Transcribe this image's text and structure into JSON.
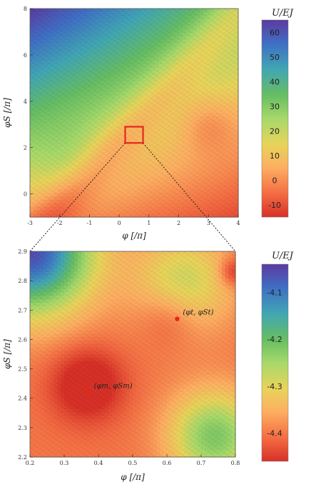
{
  "chart_data": [
    {
      "type": "heatmap",
      "xlabel": "φ [/π]",
      "ylabel": "φS [/π]",
      "xlim": [
        -3,
        4
      ],
      "ylim": [
        -1,
        8
      ],
      "x_ticks": [
        "-3",
        "-2",
        "-1",
        "0",
        "1",
        "2",
        "3",
        "4"
      ],
      "y_ticks": [
        "0",
        "2",
        "4",
        "6",
        "8"
      ],
      "x_tick_values": [
        -3,
        -2,
        -1,
        0,
        1,
        2,
        3,
        4
      ],
      "y_tick_values": [
        0,
        2,
        4,
        6,
        8
      ],
      "colorbar": {
        "title": "U/EJ",
        "ticks": [
          "60",
          "50",
          "40",
          "30",
          "20",
          "10",
          "0",
          "-10"
        ],
        "tick_values": [
          60,
          50,
          40,
          30,
          20,
          10,
          0,
          -10
        ],
        "range": [
          -15,
          65
        ]
      },
      "zoom_box": {
        "x": [
          0.2,
          0.8
        ],
        "y": [
          2.2,
          2.9
        ],
        "color": "#e8261c"
      },
      "corner_values": {
        "top_left": 65,
        "top_right": 30,
        "bottom_left": 5,
        "bottom_right": -10,
        "center": 5
      }
    },
    {
      "type": "heatmap",
      "xlabel": "φ [/π]",
      "ylabel": "φS [/π]",
      "xlim": [
        0.2,
        0.8
      ],
      "ylim": [
        2.2,
        2.9
      ],
      "x_ticks": [
        "0.2",
        "0.3",
        "0.4",
        "0.5",
        "0.6",
        "0.7",
        "0.8"
      ],
      "y_ticks": [
        "2.2",
        "2.3",
        "2.4",
        "2.5",
        "2.6",
        "2.7",
        "2.8",
        "2.9"
      ],
      "x_tick_values": [
        0.2,
        0.3,
        0.4,
        0.5,
        0.6,
        0.7,
        0.8
      ],
      "y_tick_values": [
        2.2,
        2.3,
        2.4,
        2.5,
        2.6,
        2.7,
        2.8,
        2.9
      ],
      "colorbar": {
        "title": "U/EJ",
        "ticks": [
          "-4.1",
          "-4.2",
          "-4.3",
          "-4.4"
        ],
        "tick_values": [
          -4.1,
          -4.2,
          -4.3,
          -4.4
        ],
        "range": [
          -4.46,
          -4.04
        ]
      },
      "points": [
        {
          "label": "(φm, φSm)",
          "x": 0.37,
          "y": 2.42,
          "color": "#e8261c"
        },
        {
          "label": "(φt, φSt)",
          "x": 0.63,
          "y": 2.67,
          "color": "#e8261c"
        }
      ]
    }
  ]
}
